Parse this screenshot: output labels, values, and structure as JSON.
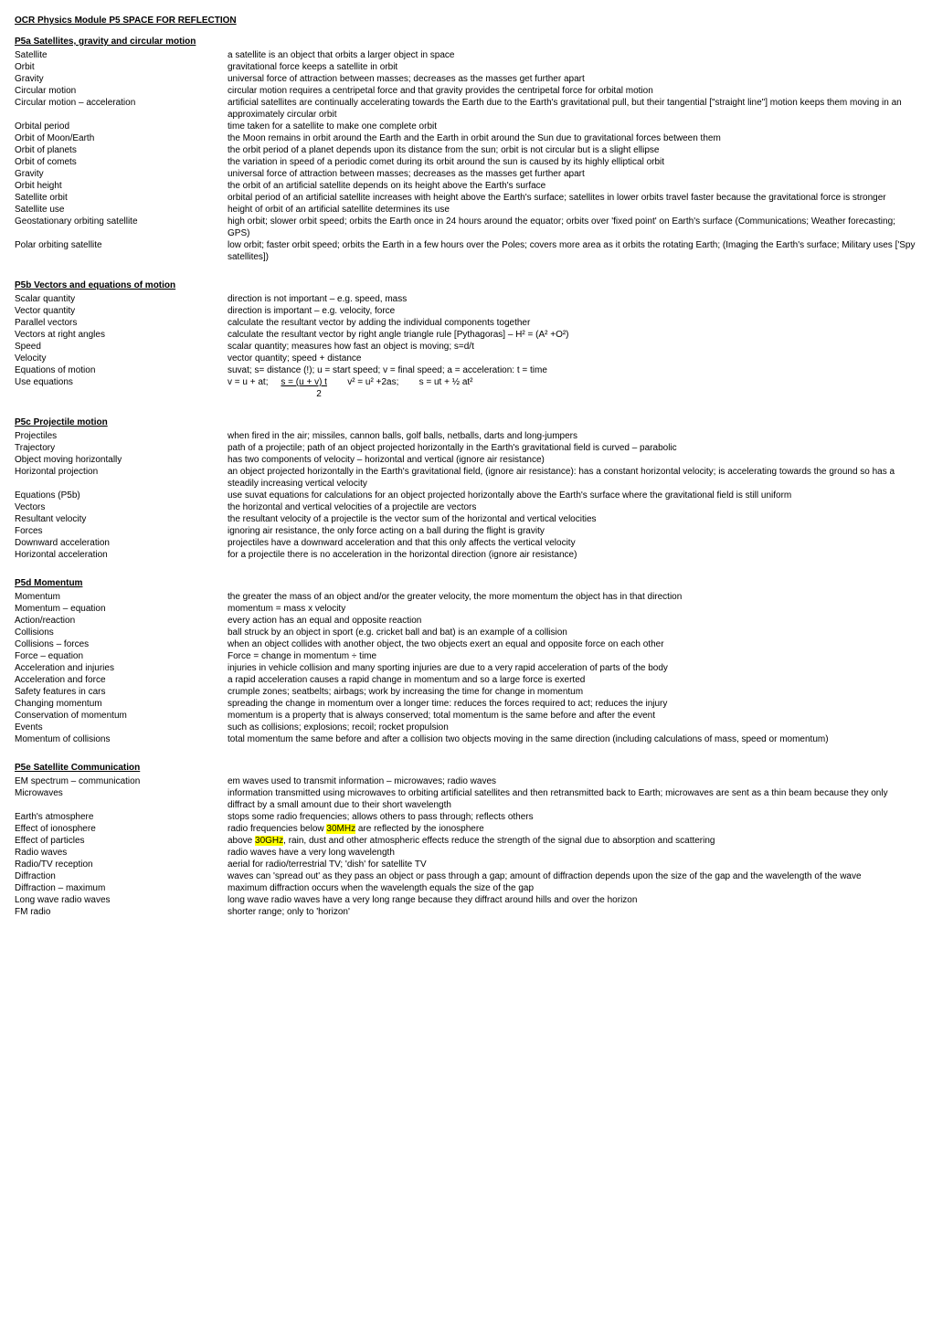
{
  "title": "OCR Physics Module P5 SPACE FOR REFLECTION",
  "sections": [
    {
      "heading": "P5a Satellites, gravity and circular motion",
      "rows": [
        {
          "term": "Satellite",
          "def": "a satellite is an object that orbits a larger object in space"
        },
        {
          "term": "Orbit",
          "def": "gravitational force keeps a satellite in orbit"
        },
        {
          "term": "Gravity",
          "def": "universal force of attraction between masses; decreases as the masses get further apart"
        },
        {
          "term": "Circular motion",
          "def": "circular motion requires a centripetal force and that gravity provides the centripetal force for orbital motion"
        },
        {
          "term": "Circular motion – acceleration",
          "def": "artificial satellites are continually accelerating towards the Earth due to the Earth's gravitational pull, but their tangential [\"straight line\"] motion keeps them moving in an approximately circular orbit"
        },
        {
          "term": "Orbital period",
          "def": "time taken for a satellite to make one complete orbit"
        },
        {
          "term": "Orbit of Moon/Earth",
          "def": "the Moon remains in orbit around the Earth and the Earth in orbit around the Sun due to gravitational forces between them"
        },
        {
          "term": "Orbit of planets",
          "def": "the orbit period of a planet depends upon its distance from the sun; orbit is not circular but is a slight ellipse"
        },
        {
          "term": "Orbit of comets",
          "def": "the variation in speed of a periodic comet during its orbit around the sun is caused by its highly elliptical orbit"
        },
        {
          "term": "Gravity",
          "def": "universal force of attraction between masses; decreases as the masses get further apart"
        },
        {
          "term": "Orbit height",
          "def": "the orbit of an artificial satellite depends on its height above the Earth's surface"
        },
        {
          "term": "Satellite orbit",
          "def": "orbital period of an artificial satellite increases with height above the Earth's surface; satellites in lower orbits travel faster because the gravitational force is stronger"
        },
        {
          "term": "Satellite use",
          "def": "height of orbit of an artificial satellite determines its use"
        },
        {
          "term": "Geostationary orbiting satellite",
          "def": "high orbit; slower orbit speed; orbits the Earth once in 24 hours around the equator; orbits over 'fixed point' on Earth's surface (Communications; Weather forecasting; GPS)"
        },
        {
          "term": "Polar orbiting satellite",
          "def": "low orbit; faster orbit speed; orbits the Earth in a few hours over the Poles; covers more area as it orbits the rotating Earth; (Imaging the Earth's surface; Military     uses ['Spy satellites])"
        }
      ]
    },
    {
      "heading": "P5b Vectors and equations of motion",
      "rows": [
        {
          "term": "Scalar quantity",
          "def": "direction is not important – e.g. speed, mass"
        },
        {
          "term": "Vector quantity",
          "def": "direction is important – e.g. velocity, force"
        },
        {
          "term": "Parallel vectors",
          "def": "calculate the resultant vector by adding the individual components together"
        },
        {
          "term": "Vectors at right angles",
          "def": "calculate the resultant vector by right angle triangle rule [Pythagoras] – H² = (A² +O²)"
        },
        {
          "term": "Speed",
          "def": "scalar quantity; measures how fast an object is moving; s=d/t"
        },
        {
          "term": "Velocity",
          "def": "vector quantity; speed + distance"
        },
        {
          "term": "Equations of motion",
          "def": "suvat; s= distance (!); u = start speed; v = final speed; a = acceleration: t = time"
        },
        {
          "term": "Use equations",
          "def": "EQUATION_ROW"
        }
      ],
      "equation": {
        "pre": "v = u + at;",
        "frac_top": "s = (u + v) t",
        "frac_bot": "2",
        "post1": "v² = u² +2as;",
        "post2": "s = ut + ½ at²"
      }
    },
    {
      "heading": "P5c Projectile motion",
      "rows": [
        {
          "term": "Projectiles",
          "def": "when fired in the air; missiles, cannon balls, golf balls, netballs, darts and long-jumpers"
        },
        {
          "term": "Trajectory",
          "def": "path of a projectile; path of an object projected horizontally in the Earth's gravitational field is curved – parabolic"
        },
        {
          "term": "Object moving horizontally",
          "def": "has two components of velocity – horizontal and vertical (ignore air resistance)"
        },
        {
          "term": "Horizontal projection",
          "def": "an object projected horizontally in the Earth's gravitational field, (ignore air resistance): has a constant horizontal velocity; is accelerating towards the ground so has a steadily increasing vertical velocity"
        },
        {
          "term": "Equations (P5b)",
          "def": "use suvat equations for calculations for an object projected horizontally above the Earth's surface where the gravitational field is still uniform"
        },
        {
          "term": "Vectors",
          "def": "the horizontal and vertical velocities of a projectile are vectors"
        },
        {
          "term": "Resultant velocity",
          "def": "the resultant velocity of a projectile is the vector sum of the horizontal and vertical velocities"
        },
        {
          "term": "Forces",
          "def": "ignoring air resistance, the only force acting on a ball during the flight is gravity"
        },
        {
          "term": "Downward acceleration",
          "def": "projectiles have a downward acceleration and that this only affects the vertical velocity"
        },
        {
          "term": "Horizontal acceleration",
          "def": "for a projectile there is no acceleration in the horizontal direction (ignore air resistance)"
        }
      ]
    },
    {
      "heading": "P5d Momentum",
      "rows": [
        {
          "term": "Momentum",
          "def": "the greater the mass of an object and/or the greater velocity, the more momentum the object has in that direction"
        },
        {
          "term": "Momentum – equation",
          "def": "momentum = mass x velocity"
        },
        {
          "term": "Action/reaction",
          "def": "every action has an equal and opposite reaction"
        },
        {
          "term": "Collisions",
          "def": "ball struck by an object in sport (e.g. cricket ball and bat) is an example of a collision"
        },
        {
          "term": "Collisions – forces",
          "def": "when an object collides with another object, the two objects exert an equal and opposite force on each other"
        },
        {
          "term": "Force – equation",
          "def": "Force = change in momentum ÷ time"
        },
        {
          "term": "Acceleration and injuries",
          "def": "injuries in vehicle collision and many sporting injuries are due to a very rapid acceleration of parts of the body"
        },
        {
          "term": "Acceleration and force",
          "def": "a rapid acceleration causes a rapid change in momentum and so a large force is exerted"
        },
        {
          "term": "Safety features in cars",
          "def": "crumple zones; seatbelts; airbags; work by increasing the time for change in momentum"
        },
        {
          "term": "Changing momentum",
          "def": "spreading the change in momentum over a longer time: reduces the forces required to act; reduces the injury"
        },
        {
          "term": "Conservation of momentum",
          "def": "momentum is a property that is always conserved; total momentum is the same before and after the event"
        },
        {
          "term": "Events",
          "def": "such as collisions; explosions; recoil; rocket propulsion"
        },
        {
          "term": "Momentum of collisions",
          "def": "total momentum the same before and after a collision two objects moving in the same direction (including calculations of mass, speed or momentum)"
        }
      ]
    },
    {
      "heading": "P5e Satellite Communication",
      "rows": [
        {
          "term": "EM spectrum – communication",
          "def": "em waves used to transmit information – microwaves; radio waves"
        },
        {
          "term": "Microwaves",
          "def": "information transmitted using microwaves to orbiting artificial satellites and then retransmitted back to Earth; microwaves are sent as a thin beam because they only diffract by a small amount due to their short wavelength"
        },
        {
          "term": "Earth's atmosphere",
          "def": "stops some radio frequencies; allows others to pass through; reflects others"
        },
        {
          "term": "Effect of ionosphere",
          "def": "IONOSPHERE_ROW"
        },
        {
          "term": "Effect of particles",
          "def": "PARTICLES_ROW"
        },
        {
          "term": "Radio waves",
          "def": "radio waves have a very long wavelength"
        },
        {
          "term": "Radio/TV reception",
          "def": "aerial for radio/terrestrial TV; 'dish' for satellite TV"
        },
        {
          "term": "Diffraction",
          "def": "waves can 'spread out' as they pass an object or pass through a gap; amount of diffraction depends upon the size of the gap and the wavelength of the wave"
        },
        {
          "term": "Diffraction – maximum",
          "def": "maximum diffraction occurs when the wavelength equals the size of the gap"
        },
        {
          "term": "Long wave radio waves",
          "def": "long wave radio waves have a very long range because they diffract around hills and over the horizon"
        },
        {
          "term": "FM radio",
          "def": "shorter range; only to 'horizon'"
        }
      ],
      "ionosphere": {
        "pre": "radio frequencies below ",
        "hl": "30MHz",
        "post": " are reflected by the ionosphere"
      },
      "particles": {
        "pre": "above ",
        "hl": "30GHz",
        "post": ", rain, dust and other atmospheric effects reduce the strength of the signal due to absorption and scattering"
      }
    }
  ],
  "colors": {
    "highlight": "#ffff00",
    "text": "#000000",
    "background": "#ffffff"
  }
}
